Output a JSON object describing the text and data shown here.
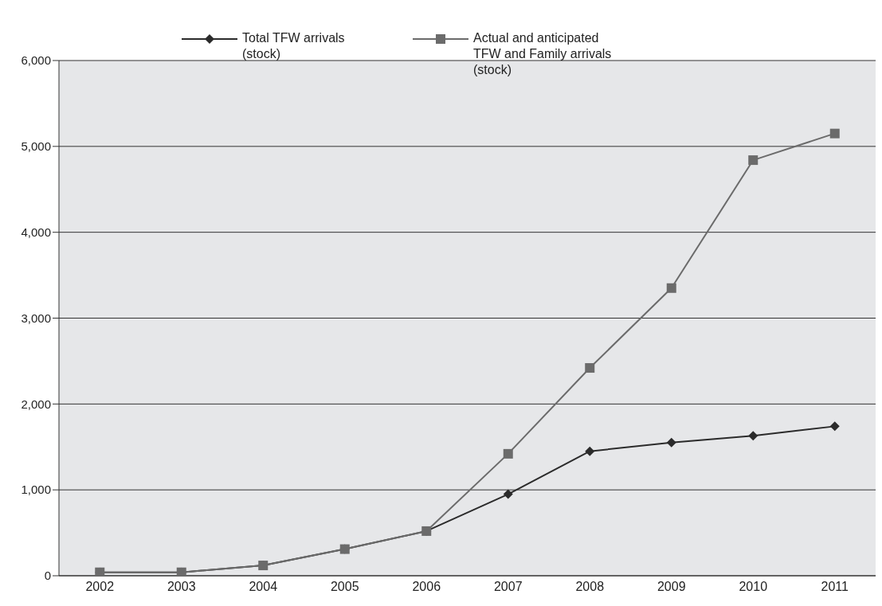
{
  "chart_data": {
    "type": "line",
    "categories": [
      "2002",
      "2003",
      "2004",
      "2005",
      "2006",
      "2007",
      "2008",
      "2009",
      "2010",
      "2011"
    ],
    "series": [
      {
        "name": "Total TFW arrivals (stock)",
        "color": "#2b2b2b",
        "marker": "diamond",
        "values": [
          40,
          40,
          120,
          310,
          520,
          950,
          1450,
          1550,
          1630,
          1740
        ]
      },
      {
        "name": "Actual and anticipated TFW and Family arrivals (stock)",
        "color": "#6b6b6b",
        "marker": "square",
        "values": [
          40,
          40,
          120,
          310,
          520,
          1420,
          2420,
          3350,
          4840,
          5150
        ]
      }
    ],
    "ylim": [
      0,
      6000
    ],
    "yticks": [
      {
        "value": 0,
        "label": "0"
      },
      {
        "value": 1000,
        "label": "1,000"
      },
      {
        "value": 2000,
        "label": "2,000"
      },
      {
        "value": 3000,
        "label": "3,000"
      },
      {
        "value": 4000,
        "label": "4,000"
      },
      {
        "value": 5000,
        "label": "5,000"
      },
      {
        "value": 6000,
        "label": "6,000"
      }
    ],
    "grid": "y",
    "legend": "top"
  }
}
